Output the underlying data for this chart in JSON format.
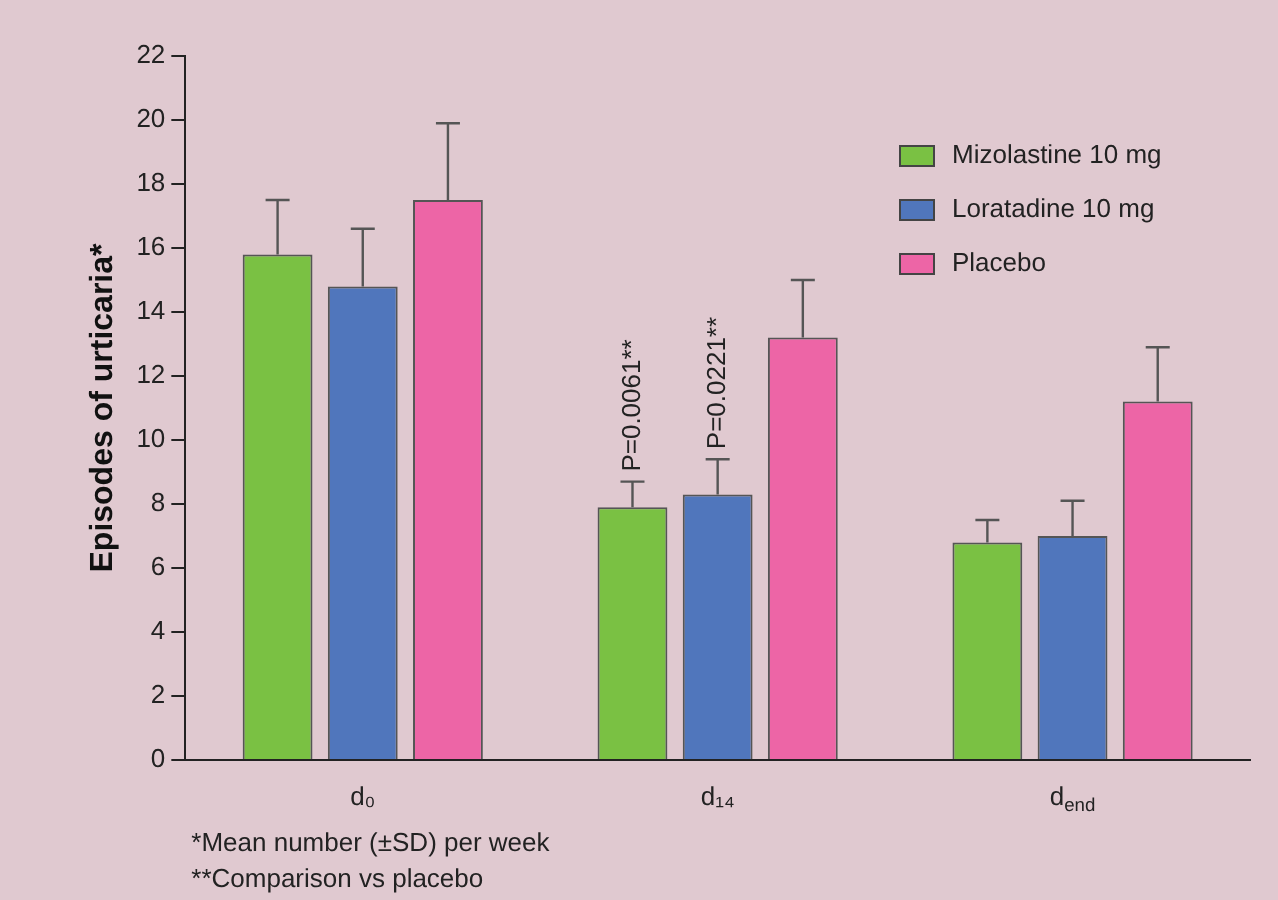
{
  "chart_data": {
    "type": "bar",
    "ylabel": "Episodes of urticaria*",
    "categories": [
      "d₀",
      "d₁₄",
      "d$_{end}$"
    ],
    "series": [
      {
        "name": "Mizolastine 10 mg",
        "color": "#7ac143",
        "values": [
          15.8,
          7.9,
          6.8
        ],
        "errors": [
          [
            15.8,
            17.5
          ],
          [
            7.9,
            8.7
          ],
          [
            6.8,
            7.5
          ]
        ]
      },
      {
        "name": "Loratadine 10 mg",
        "color": "#5076bc",
        "values": [
          14.8,
          8.3,
          7.0
        ],
        "errors": [
          [
            14.8,
            16.6
          ],
          [
            8.3,
            9.4
          ],
          [
            7.0,
            8.1
          ]
        ]
      },
      {
        "name": "Placebo",
        "color": "#ed65a6",
        "values": [
          17.5,
          13.2,
          11.2
        ],
        "errors": [
          [
            17.5,
            19.9
          ],
          [
            13.2,
            15.0
          ],
          [
            11.2,
            12.9
          ]
        ]
      }
    ],
    "ylim": [
      0,
      22
    ],
    "yticks": [
      0,
      2,
      4,
      6,
      8,
      10,
      12,
      14,
      16,
      18,
      20,
      22
    ],
    "grid": false,
    "legend": "top right",
    "annotations": [
      {
        "text": "P=0.0061**",
        "x": "d₁₄",
        "y": 8.7
      },
      {
        "text": "P=0.0221**",
        "x": "d₁₄",
        "y": 9.4
      },
      "*Mean number (±SD) per week",
      "**Comparison vs placebo"
    ]
  }
}
